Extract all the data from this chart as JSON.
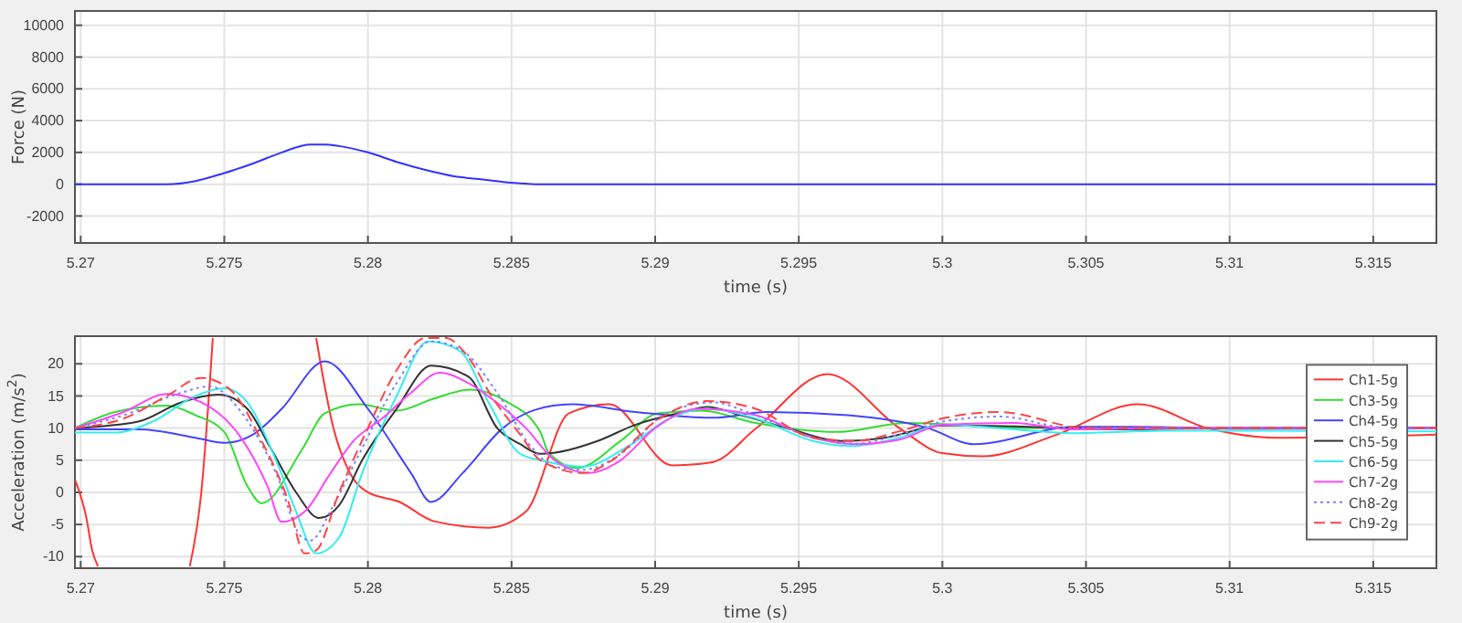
{
  "chart_data": [
    {
      "type": "line",
      "xlabel": "time (s)",
      "ylabel": "Force (N)",
      "xlim": [
        5.2698,
        5.3172
      ],
      "ylim": [
        -3700,
        10900
      ],
      "xticks": [
        5.27,
        5.275,
        5.28,
        5.285,
        5.29,
        5.295,
        5.3,
        5.305,
        5.31,
        5.315
      ],
      "yticks": [
        -2000,
        0,
        2000,
        4000,
        6000,
        8000,
        10000
      ],
      "grid": true,
      "legend": false,
      "series": [
        {
          "color": "#3333ff",
          "line_style": "solid",
          "x": [
            5.2698,
            5.273,
            5.274,
            5.275,
            5.276,
            5.277,
            5.278,
            5.2785,
            5.279,
            5.28,
            5.281,
            5.282,
            5.283,
            5.284,
            5.285,
            5.286,
            5.288,
            5.29,
            5.3172
          ],
          "values": [
            0,
            0,
            200,
            700,
            1300,
            2000,
            2500,
            2500,
            2400,
            2000,
            1400,
            900,
            500,
            300,
            100,
            0,
            0,
            0,
            0
          ]
        }
      ]
    },
    {
      "type": "line",
      "xlabel": "time (s)",
      "ylabel": "Acceleration (m/s$^{2}$)",
      "xlim": [
        5.2698,
        5.3172
      ],
      "ylim": [
        -11.8,
        24.3
      ],
      "xticks": [
        5.27,
        5.275,
        5.28,
        5.285,
        5.29,
        5.295,
        5.3,
        5.305,
        5.31,
        5.315
      ],
      "yticks": [
        -10,
        -5,
        0,
        5,
        10,
        15,
        20
      ],
      "grid": true,
      "legend": "right",
      "series": [
        {
          "name": "Ch1-5g",
          "color": "#ff3333",
          "line_style": "solid",
          "x": [
            5.2698,
            5.2702,
            5.2704,
            5.2706,
            5.271,
            5.2738,
            5.2742,
            5.2746,
            5.276,
            5.2782,
            5.2788,
            5.2794,
            5.28,
            5.2811,
            5.2823,
            5.2842,
            5.2855,
            5.287,
            5.2884,
            5.2906,
            5.292,
            5.2935,
            5.296,
            5.2985,
            5.3,
            5.3014,
            5.304,
            5.3068,
            5.3093,
            5.3116,
            5.3172
          ],
          "values": [
            2,
            -4,
            -9,
            -11.5,
            null,
            -11.5,
            0,
            24,
            null,
            24,
            10,
            2.8,
            0,
            -1.5,
            -4.5,
            -5.5,
            -3,
            12.3,
            13.7,
            4.2,
            4.7,
            9.9,
            18.4,
            10,
            6.1,
            5.6,
            9,
            13.7,
            9.9,
            8.5,
            9
          ]
        },
        {
          "name": "Ch3-5g",
          "color": "#33dd33",
          "line_style": "solid",
          "x": [
            5.2698,
            5.2712,
            5.273,
            5.274,
            5.275,
            5.2758,
            5.2763,
            5.2777,
            5.2785,
            5.2797,
            5.281,
            5.2823,
            5.2836,
            5.2848,
            5.286,
            5.2863,
            5.2873,
            5.2888,
            5.2901,
            5.2916,
            5.2935,
            5.2963,
            5.2988,
            5.303,
            5.3172
          ],
          "values": [
            10,
            12.5,
            13.5,
            12,
            9.4,
            1,
            -1.7,
            6.6,
            12.3,
            13.7,
            12.7,
            14.6,
            16,
            14.2,
            9.4,
            6.1,
            3.8,
            8,
            12.3,
            12.7,
            10.8,
            9.4,
            10.8,
            10,
            10
          ]
        },
        {
          "name": "Ch4-5g",
          "color": "#4444ff",
          "line_style": "solid",
          "x": [
            5.2698,
            5.272,
            5.274,
            5.275,
            5.276,
            5.277,
            5.2785,
            5.28,
            5.2815,
            5.2822,
            5.2833,
            5.2847,
            5.2858,
            5.2871,
            5.2893,
            5.292,
            5.2939,
            5.2967,
            5.2995,
            5.3011,
            5.3046,
            5.3066,
            5.3108,
            5.3172
          ],
          "values": [
            9.8,
            9.8,
            8.5,
            7.7,
            9,
            13,
            20.4,
            13,
            3,
            -1.5,
            3,
            10,
            12.8,
            13.7,
            12.5,
            11.6,
            12.5,
            12,
            10,
            7.5,
            10.2,
            10.2,
            9.9,
            10
          ]
        },
        {
          "name": "Ch5-5g",
          "color": "#333333",
          "line_style": "solid",
          "x": [
            5.2698,
            5.272,
            5.2735,
            5.2748,
            5.2758,
            5.2766,
            5.2775,
            5.2783,
            5.279,
            5.2798,
            5.281,
            5.2822,
            5.2835,
            5.2845,
            5.2853,
            5.286,
            5.288,
            5.2893,
            5.291,
            5.2918,
            5.293,
            5.2946,
            5.2965,
            5.298,
            5.3,
            5.303,
            5.306,
            5.31,
            5.3172
          ],
          "values": [
            10,
            11,
            14,
            15.2,
            13,
            7,
            0,
            -4,
            -2,
            5,
            13,
            19.7,
            18,
            10,
            7.5,
            6,
            8,
            10.5,
            12.5,
            13.3,
            12,
            10,
            8,
            8.5,
            10.4,
            10.2,
            9.8,
            10,
            10
          ]
        },
        {
          "name": "Ch6-5g",
          "color": "#33eeee",
          "line_style": "solid",
          "x": [
            5.2698,
            5.2712,
            5.2725,
            5.274,
            5.275,
            5.2758,
            5.2768,
            5.2775,
            5.2782,
            5.279,
            5.2798,
            5.281,
            5.2821,
            5.2832,
            5.2842,
            5.2853,
            5.286,
            5.2865,
            5.2875,
            5.289,
            5.2905,
            5.2918,
            5.2935,
            5.2955,
            5.2968,
            5.2985,
            5.3,
            5.3025,
            5.3045,
            5.308,
            5.3172
          ],
          "values": [
            9.3,
            9.3,
            11,
            15,
            16.2,
            14,
            5,
            -3,
            -9.5,
            -7,
            3,
            15,
            23.5,
            22,
            14,
            6,
            5,
            4.5,
            4,
            7,
            11.5,
            13,
            11.5,
            8,
            7.2,
            8.5,
            10.5,
            9.8,
            9.2,
            9.6,
            9.5
          ]
        },
        {
          "name": "Ch7-2g",
          "color": "#ff44ff",
          "line_style": "solid",
          "x": [
            5.2698,
            5.2715,
            5.273,
            5.2742,
            5.2755,
            5.2765,
            5.277,
            5.2778,
            5.2787,
            5.2795,
            5.2805,
            5.2815,
            5.2825,
            5.2835,
            5.2843,
            5.2855,
            5.2865,
            5.2877,
            5.2888,
            5.29,
            5.2915,
            5.2935,
            5.2955,
            5.297,
            5.2985,
            5.3,
            5.3025,
            5.3045,
            5.308,
            5.3172
          ],
          "values": [
            10,
            12.5,
            15.3,
            14,
            9,
            1,
            -4.6,
            -3,
            3,
            8,
            11.5,
            15.5,
            18.6,
            17,
            14.6,
            10,
            5,
            3,
            5,
            10,
            13,
            12,
            8.5,
            7.5,
            8.2,
            10.5,
            10.8,
            9.8,
            10,
            10
          ]
        },
        {
          "name": "Ch8-2g",
          "color": "#8080ff",
          "line_style": "dotted",
          "x": [
            5.2698,
            5.2715,
            5.2735,
            5.2745,
            5.2755,
            5.2768,
            5.2777,
            5.278,
            5.2788,
            5.2797,
            5.281,
            5.2822,
            5.2833,
            5.2845,
            5.2857,
            5.2865,
            5.2875,
            5.2888,
            5.2903,
            5.292,
            5.2935,
            5.2955,
            5.297,
            5.2985,
            5.3,
            5.302,
            5.3045,
            5.3172
          ],
          "values": [
            10,
            12,
            15.5,
            16.5,
            13,
            3,
            -7,
            -7.5,
            -2,
            6,
            17,
            23.5,
            22,
            15.5,
            7,
            4,
            3.5,
            6,
            12,
            14,
            12,
            8.5,
            7.6,
            9,
            11,
            11.8,
            10,
            10
          ]
        },
        {
          "name": "Ch9-2g",
          "color": "#ff4444",
          "line_style": "dashed",
          "x": [
            5.2698,
            5.2715,
            5.273,
            5.2742,
            5.2752,
            5.2763,
            5.2772,
            5.2778,
            5.2782,
            5.279,
            5.28,
            5.281,
            5.282,
            5.2827,
            5.2835,
            5.2843,
            5.2853,
            5.286,
            5.2875,
            5.2885,
            5.29,
            5.2918,
            5.2935,
            5.2955,
            5.297,
            5.2985,
            5.3,
            5.302,
            5.305,
            5.3172
          ],
          "values": [
            10,
            11.5,
            15,
            17.8,
            16,
            8,
            -1,
            -9.5,
            -9,
            0,
            10,
            19,
            24,
            24,
            21,
            15,
            9,
            5,
            3,
            5,
            11,
            14.2,
            13,
            8.5,
            8,
            9.5,
            11.5,
            12.5,
            10,
            10
          ]
        }
      ]
    }
  ]
}
